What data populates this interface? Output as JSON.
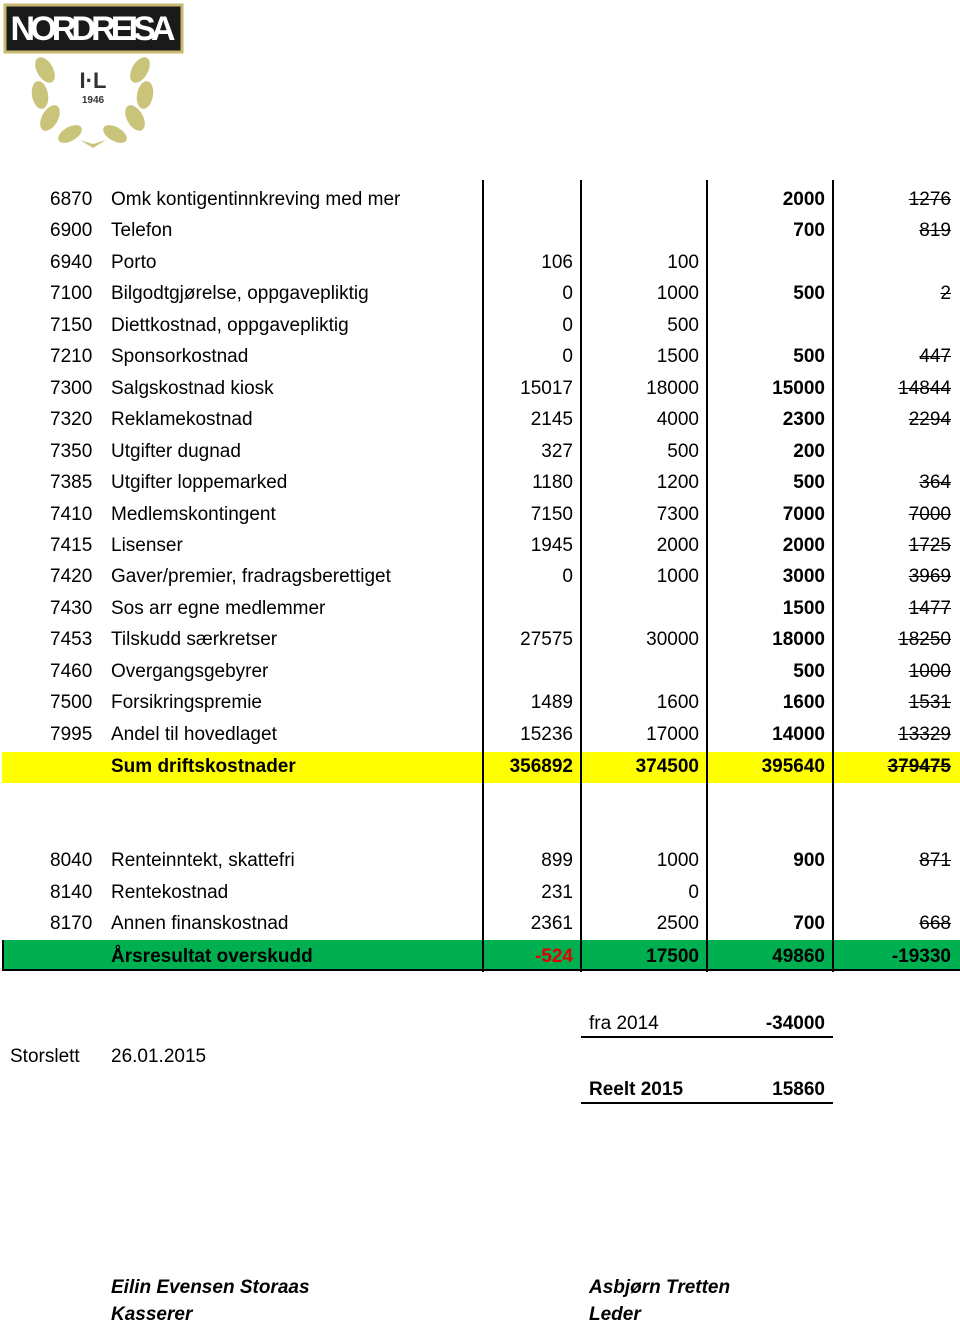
{
  "header": {
    "logo_name": "NORDREISA",
    "logo_sub": "I·L",
    "logo_year": "1946"
  },
  "table": {
    "rows": [
      [
        "6870",
        "Omk kontigentinnkreving med mer",
        null,
        null,
        "2000",
        "1276"
      ],
      [
        "6900",
        "Telefon",
        null,
        null,
        "700",
        "819"
      ],
      [
        "6940",
        "Porto",
        "106",
        "100",
        null,
        null
      ],
      [
        "7100",
        "Bilgodtgjørelse, oppgavepliktig",
        "0",
        "1000",
        "500",
        "2"
      ],
      [
        "7150",
        "Diettkostnad, oppgavepliktig",
        "0",
        "500",
        null,
        null
      ],
      [
        "7210",
        "Sponsorkostnad",
        "0",
        "1500",
        "500",
        "447"
      ],
      [
        "7300",
        "Salgskostnad kiosk",
        "15017",
        "18000",
        "15000",
        "14844"
      ],
      [
        "7320",
        "Reklamekostnad",
        "2145",
        "4000",
        "2300",
        "2294"
      ],
      [
        "7350",
        "Utgifter dugnad",
        "327",
        "500",
        "200",
        null
      ],
      [
        "7385",
        "Utgifter loppemarked",
        "1180",
        "1200",
        "500",
        "364"
      ],
      [
        "7410",
        "Medlemskontingent",
        "7150",
        "7300",
        "7000",
        "7000"
      ],
      [
        "7415",
        "Lisenser",
        "1945",
        "2000",
        "2000",
        "1725"
      ],
      [
        "7420",
        "Gaver/premier, fradragsberettiget",
        "0",
        "1000",
        "3000",
        "3969"
      ],
      [
        "7430",
        "Sos arr egne medlemmer",
        null,
        null,
        "1500",
        "1477"
      ],
      [
        "7453",
        "Tilskudd særkretser",
        "27575",
        "30000",
        "18000",
        "18250"
      ],
      [
        "7460",
        "Overgangsgebyrer",
        null,
        null,
        "500",
        "1000"
      ],
      [
        "7500",
        "Forsikringspremie",
        "1489",
        "1600",
        "1600",
        "1531"
      ],
      [
        "7995",
        "Andel til hovedlaget",
        "15236",
        "17000",
        "14000",
        "13329"
      ]
    ],
    "sum_row": [
      null,
      "Sum driftskostnader",
      "356892",
      "374500",
      "395640",
      "379475"
    ],
    "finance_rows": [
      [
        "8040",
        "Renteinntekt, skattefri",
        "899",
        "1000",
        "900",
        "871"
      ],
      [
        "8140",
        "Rentekostnad",
        "231",
        "0",
        null,
        null
      ],
      [
        "8170",
        "Annen finanskostnad",
        "2361",
        "2500",
        "700",
        "668"
      ]
    ],
    "result_row": [
      null,
      "Årsresultat  overskudd",
      "-524",
      "17500",
      "49860",
      "-19330"
    ]
  },
  "footer": {
    "carryover": {
      "label": "fra 2014",
      "value": "-34000"
    },
    "place": "Storslett",
    "date": "26.01.2015",
    "real": {
      "label": "Reelt 2015",
      "value": "15860"
    },
    "signatures": [
      {
        "name": "Eilin Evensen Storaas",
        "role": "Kasserer"
      },
      {
        "name": "Asbjørn Tretten",
        "role": "Leder"
      }
    ]
  }
}
